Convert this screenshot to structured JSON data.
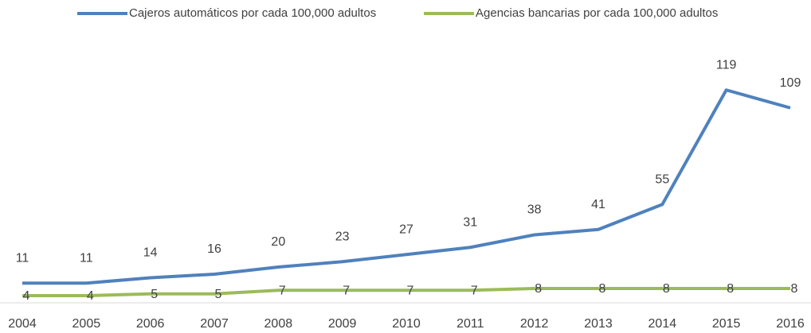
{
  "chart_data": {
    "type": "line",
    "categories": [
      "2004",
      "2005",
      "2006",
      "2007",
      "2008",
      "2009",
      "2010",
      "2011",
      "2012",
      "2013",
      "2014",
      "2015",
      "2016"
    ],
    "series": [
      {
        "name": "Cajeros automáticos por cada 100,000 adultos",
        "color": "#4f81bd",
        "values": [
          11,
          11,
          14,
          16,
          20,
          23,
          27,
          31,
          38,
          41,
          55,
          119,
          109
        ]
      },
      {
        "name": "Agencias bancarias por cada 100,000 adultos",
        "color": "#9bbb59",
        "values": [
          4,
          4,
          5,
          5,
          7,
          7,
          7,
          7,
          8,
          8,
          8,
          8,
          8
        ]
      }
    ],
    "ylim": [
      0,
      130
    ],
    "legend": "top"
  }
}
